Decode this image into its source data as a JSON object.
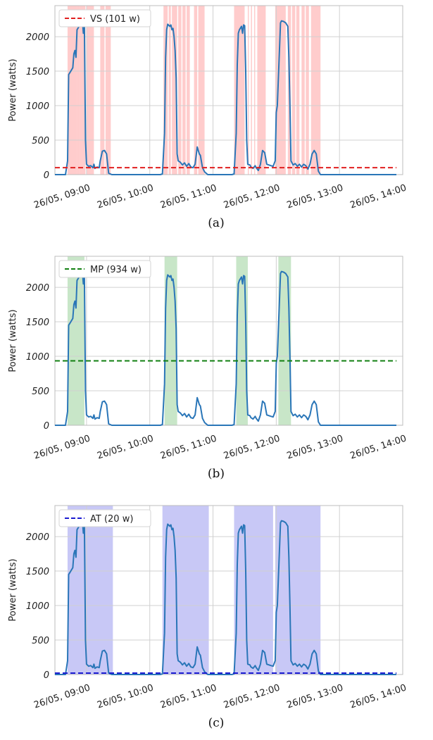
{
  "chart_data": [
    {
      "type": "line",
      "caption": "(a)",
      "ylabel": "Power (watts)",
      "xlabel": "",
      "yticks": [
        0,
        500,
        1000,
        1500,
        2000
      ],
      "ylim": [
        0,
        2450
      ],
      "xlim": [
        "08:30",
        "14:00"
      ],
      "xticks": [
        "26/05, 09:00",
        "26/05, 10:00",
        "26/05, 11:00",
        "26/05, 12:00",
        "26/05, 13:00",
        "26/05, 14:00"
      ],
      "grid": true,
      "legend_position": "top-left",
      "threshold": {
        "name": "VS (101 w)",
        "value": 101,
        "color": "#e02020"
      },
      "shade_color": "#ffcccc",
      "shaded": [
        [
          "08:42",
          "08:51"
        ],
        [
          "08:51",
          "08:53"
        ],
        [
          "08:53",
          "08:59"
        ],
        [
          "09:00",
          "09:07"
        ],
        [
          "09:13",
          "09:17"
        ],
        [
          "09:18",
          "09:23"
        ],
        [
          "10:13",
          "10:17"
        ],
        [
          "10:18",
          "10:20"
        ],
        [
          "10:21",
          "10:26"
        ],
        [
          "10:27",
          "10:30"
        ],
        [
          "10:31",
          "10:34"
        ],
        [
          "10:35",
          "10:38"
        ],
        [
          "10:42",
          "10:45"
        ],
        [
          "10:46",
          "10:52"
        ],
        [
          "11:20",
          "11:30"
        ],
        [
          "11:33",
          "11:34"
        ],
        [
          "11:36",
          "11:37"
        ],
        [
          "11:39",
          "11:40"
        ],
        [
          "11:42",
          "11:50"
        ],
        [
          "11:59",
          "12:09"
        ],
        [
          "12:11",
          "12:14"
        ],
        [
          "12:15",
          "12:18"
        ],
        [
          "12:19",
          "12:22"
        ],
        [
          "12:24",
          "12:27"
        ],
        [
          "12:28",
          "12:31"
        ],
        [
          "12:33",
          "12:42"
        ]
      ]
    },
    {
      "type": "line",
      "caption": "(b)",
      "ylabel": "Power (watts)",
      "xlabel": "",
      "yticks": [
        0,
        500,
        1000,
        1500,
        2000
      ],
      "ylim": [
        0,
        2450
      ],
      "xlim": [
        "08:30",
        "14:00"
      ],
      "xticks": [
        "26/05, 09:00",
        "26/05, 10:00",
        "26/05, 11:00",
        "26/05, 12:00",
        "26/05, 13:00",
        "26/05, 14:00"
      ],
      "grid": true,
      "legend_position": "top-left",
      "threshold": {
        "name": "MP (934 w)",
        "value": 934,
        "color": "#128012"
      },
      "shade_color": "#c8e6c8",
      "shaded": [
        [
          "08:42",
          "08:58"
        ],
        [
          "10:14",
          "10:26"
        ],
        [
          "11:22",
          "11:33"
        ],
        [
          "12:02",
          "12:14"
        ]
      ]
    },
    {
      "type": "line",
      "caption": "(c)",
      "ylabel": "Power (watts)",
      "xlabel": "",
      "yticks": [
        0,
        500,
        1000,
        1500,
        2000
      ],
      "ylim": [
        0,
        2450
      ],
      "xlim": [
        "08:30",
        "14:00"
      ],
      "xticks": [
        "26/05, 09:00",
        "26/05, 10:00",
        "26/05, 11:00",
        "26/05, 12:00",
        "26/05, 13:00",
        "26/05, 14:00"
      ],
      "grid": true,
      "legend_position": "top-left",
      "threshold": {
        "name": "AT (20 w)",
        "value": 20,
        "color": "#1a1ad0"
      },
      "shade_color": "#c8c8f6",
      "shaded": [
        [
          "08:42",
          "09:25"
        ],
        [
          "10:12",
          "10:56"
        ],
        [
          "11:20",
          "11:57"
        ],
        [
          "11:59",
          "12:42"
        ]
      ]
    }
  ],
  "power_series": {
    "name": "Power",
    "color": "#2a76b8",
    "points": [
      [
        "08:30",
        0
      ],
      [
        "08:40",
        0
      ],
      [
        "08:42",
        200
      ],
      [
        "08:43",
        1450
      ],
      [
        "08:45",
        1500
      ],
      [
        "08:47",
        1550
      ],
      [
        "08:48",
        1750
      ],
      [
        "08:49",
        1800
      ],
      [
        "08:50",
        1700
      ],
      [
        "08:51",
        2100
      ],
      [
        "08:53",
        2150
      ],
      [
        "08:55",
        2200
      ],
      [
        "08:56",
        2250
      ],
      [
        "08:57",
        2050
      ],
      [
        "08:58",
        2150
      ],
      [
        "08:59",
        500
      ],
      [
        "09:00",
        150
      ],
      [
        "09:02",
        120
      ],
      [
        "09:04",
        130
      ],
      [
        "09:06",
        100
      ],
      [
        "09:07",
        150
      ],
      [
        "09:08",
        90
      ],
      [
        "09:10",
        110
      ],
      [
        "09:12",
        100
      ],
      [
        "09:13",
        200
      ],
      [
        "09:15",
        340
      ],
      [
        "09:17",
        350
      ],
      [
        "09:19",
        300
      ],
      [
        "09:21",
        20
      ],
      [
        "09:24",
        0
      ],
      [
        "10:10",
        0
      ],
      [
        "10:12",
        10
      ],
      [
        "10:14",
        600
      ],
      [
        "10:15",
        1700
      ],
      [
        "10:16",
        2100
      ],
      [
        "10:17",
        2180
      ],
      [
        "10:19",
        2150
      ],
      [
        "10:20",
        2170
      ],
      [
        "10:21",
        2100
      ],
      [
        "10:22",
        2120
      ],
      [
        "10:23",
        2000
      ],
      [
        "10:24",
        1800
      ],
      [
        "10:25",
        1400
      ],
      [
        "10:26",
        300
      ],
      [
        "10:27",
        200
      ],
      [
        "10:29",
        180
      ],
      [
        "10:31",
        140
      ],
      [
        "10:33",
        170
      ],
      [
        "10:35",
        120
      ],
      [
        "10:37",
        160
      ],
      [
        "10:39",
        110
      ],
      [
        "10:41",
        100
      ],
      [
        "10:43",
        150
      ],
      [
        "10:45",
        400
      ],
      [
        "10:47",
        300
      ],
      [
        "10:48",
        280
      ],
      [
        "10:50",
        100
      ],
      [
        "10:52",
        40
      ],
      [
        "10:55",
        0
      ],
      [
        "11:18",
        0
      ],
      [
        "11:20",
        10
      ],
      [
        "11:22",
        600
      ],
      [
        "11:23",
        1600
      ],
      [
        "11:24",
        2050
      ],
      [
        "11:25",
        2100
      ],
      [
        "11:27",
        2150
      ],
      [
        "11:28",
        2050
      ],
      [
        "11:29",
        2170
      ],
      [
        "11:30",
        2160
      ],
      [
        "11:31",
        1500
      ],
      [
        "11:32",
        500
      ],
      [
        "11:33",
        150
      ],
      [
        "11:35",
        140
      ],
      [
        "11:36",
        110
      ],
      [
        "11:38",
        90
      ],
      [
        "11:40",
        130
      ],
      [
        "11:41",
        100
      ],
      [
        "11:43",
        60
      ],
      [
        "11:45",
        150
      ],
      [
        "11:47",
        350
      ],
      [
        "11:49",
        320
      ],
      [
        "11:51",
        150
      ],
      [
        "11:53",
        140
      ],
      [
        "11:55",
        130
      ],
      [
        "11:57",
        120
      ],
      [
        "11:59",
        200
      ],
      [
        "12:00",
        900
      ],
      [
        "12:01",
        1000
      ],
      [
        "12:02",
        1400
      ],
      [
        "12:04",
        2200
      ],
      [
        "12:05",
        2230
      ],
      [
        "12:07",
        2220
      ],
      [
        "12:09",
        2200
      ],
      [
        "12:11",
        2150
      ],
      [
        "12:12",
        1700
      ],
      [
        "12:13",
        1000
      ],
      [
        "12:14",
        200
      ],
      [
        "12:16",
        140
      ],
      [
        "12:18",
        160
      ],
      [
        "12:20",
        120
      ],
      [
        "12:22",
        150
      ],
      [
        "12:24",
        110
      ],
      [
        "12:26",
        150
      ],
      [
        "12:28",
        130
      ],
      [
        "12:30",
        80
      ],
      [
        "12:32",
        150
      ],
      [
        "12:34",
        300
      ],
      [
        "12:36",
        350
      ],
      [
        "12:38",
        300
      ],
      [
        "12:40",
        50
      ],
      [
        "12:42",
        0
      ],
      [
        "13:54",
        0
      ]
    ]
  }
}
